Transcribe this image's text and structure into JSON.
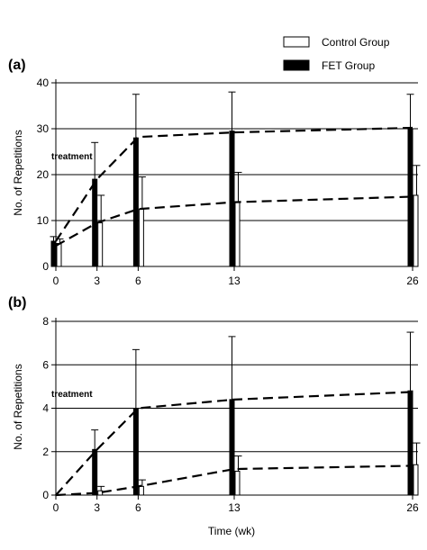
{
  "legend": [
    {
      "label": "Control Group",
      "swatch_color": "#ffffff"
    },
    {
      "label": "FET Group",
      "swatch_color": "#000000"
    }
  ],
  "colors": {
    "control": "#ffffff",
    "fet": "#000000",
    "axis": "#000000",
    "grid": "#000000"
  },
  "chart_data": [
    {
      "type": "bar",
      "panel_label": "(a)",
      "ylabel": "No. of Repetitions",
      "xlabel": "",
      "x": [
        0,
        3,
        6,
        13,
        26
      ],
      "xticks": [
        "0",
        "3",
        "6",
        "13",
        "26"
      ],
      "yticks": [
        "0",
        "10",
        "20",
        "30",
        "40"
      ],
      "ylim": [
        0,
        40
      ],
      "xlim": [
        0,
        26
      ],
      "grid": true,
      "annotation": "treatment",
      "series": [
        {
          "name": "Control Group",
          "values": [
            5,
            9.5,
            12.5,
            14,
            15.5
          ],
          "error": [
            1,
            6,
            7,
            6.5,
            6.5
          ],
          "trend": [
            4.5,
            9.5,
            12.5,
            14,
            15.2
          ]
        },
        {
          "name": "FET Group",
          "values": [
            5.5,
            19,
            28,
            29.5,
            30
          ],
          "error": [
            1,
            8,
            9.5,
            8.5,
            7.5
          ],
          "trend": [
            5.5,
            19,
            28.2,
            29.2,
            30.2
          ]
        }
      ]
    },
    {
      "type": "bar",
      "panel_label": "(b)",
      "ylabel": "No. of Repetitions",
      "xlabel": "Time (wk)",
      "x": [
        0,
        3,
        6,
        13,
        26
      ],
      "xticks": [
        "0",
        "3",
        "6",
        "13",
        "26"
      ],
      "yticks": [
        "0",
        "2",
        "4",
        "6",
        "8"
      ],
      "ylim": [
        0,
        8
      ],
      "xlim": [
        0,
        26
      ],
      "grid": true,
      "annotation": "treatment",
      "series": [
        {
          "name": "Control Group",
          "values": [
            0,
            0.2,
            0.4,
            1.1,
            1.4
          ],
          "error": [
            0,
            0.2,
            0.3,
            0.7,
            1
          ],
          "trend": [
            0,
            0.1,
            0.4,
            1.2,
            1.35
          ]
        },
        {
          "name": "FET Group",
          "values": [
            0,
            2.1,
            4,
            4.4,
            4.8
          ],
          "error": [
            0,
            0.9,
            2.7,
            2.9,
            2.7
          ],
          "trend": [
            0,
            2.1,
            4,
            4.4,
            4.75
          ]
        }
      ]
    }
  ]
}
